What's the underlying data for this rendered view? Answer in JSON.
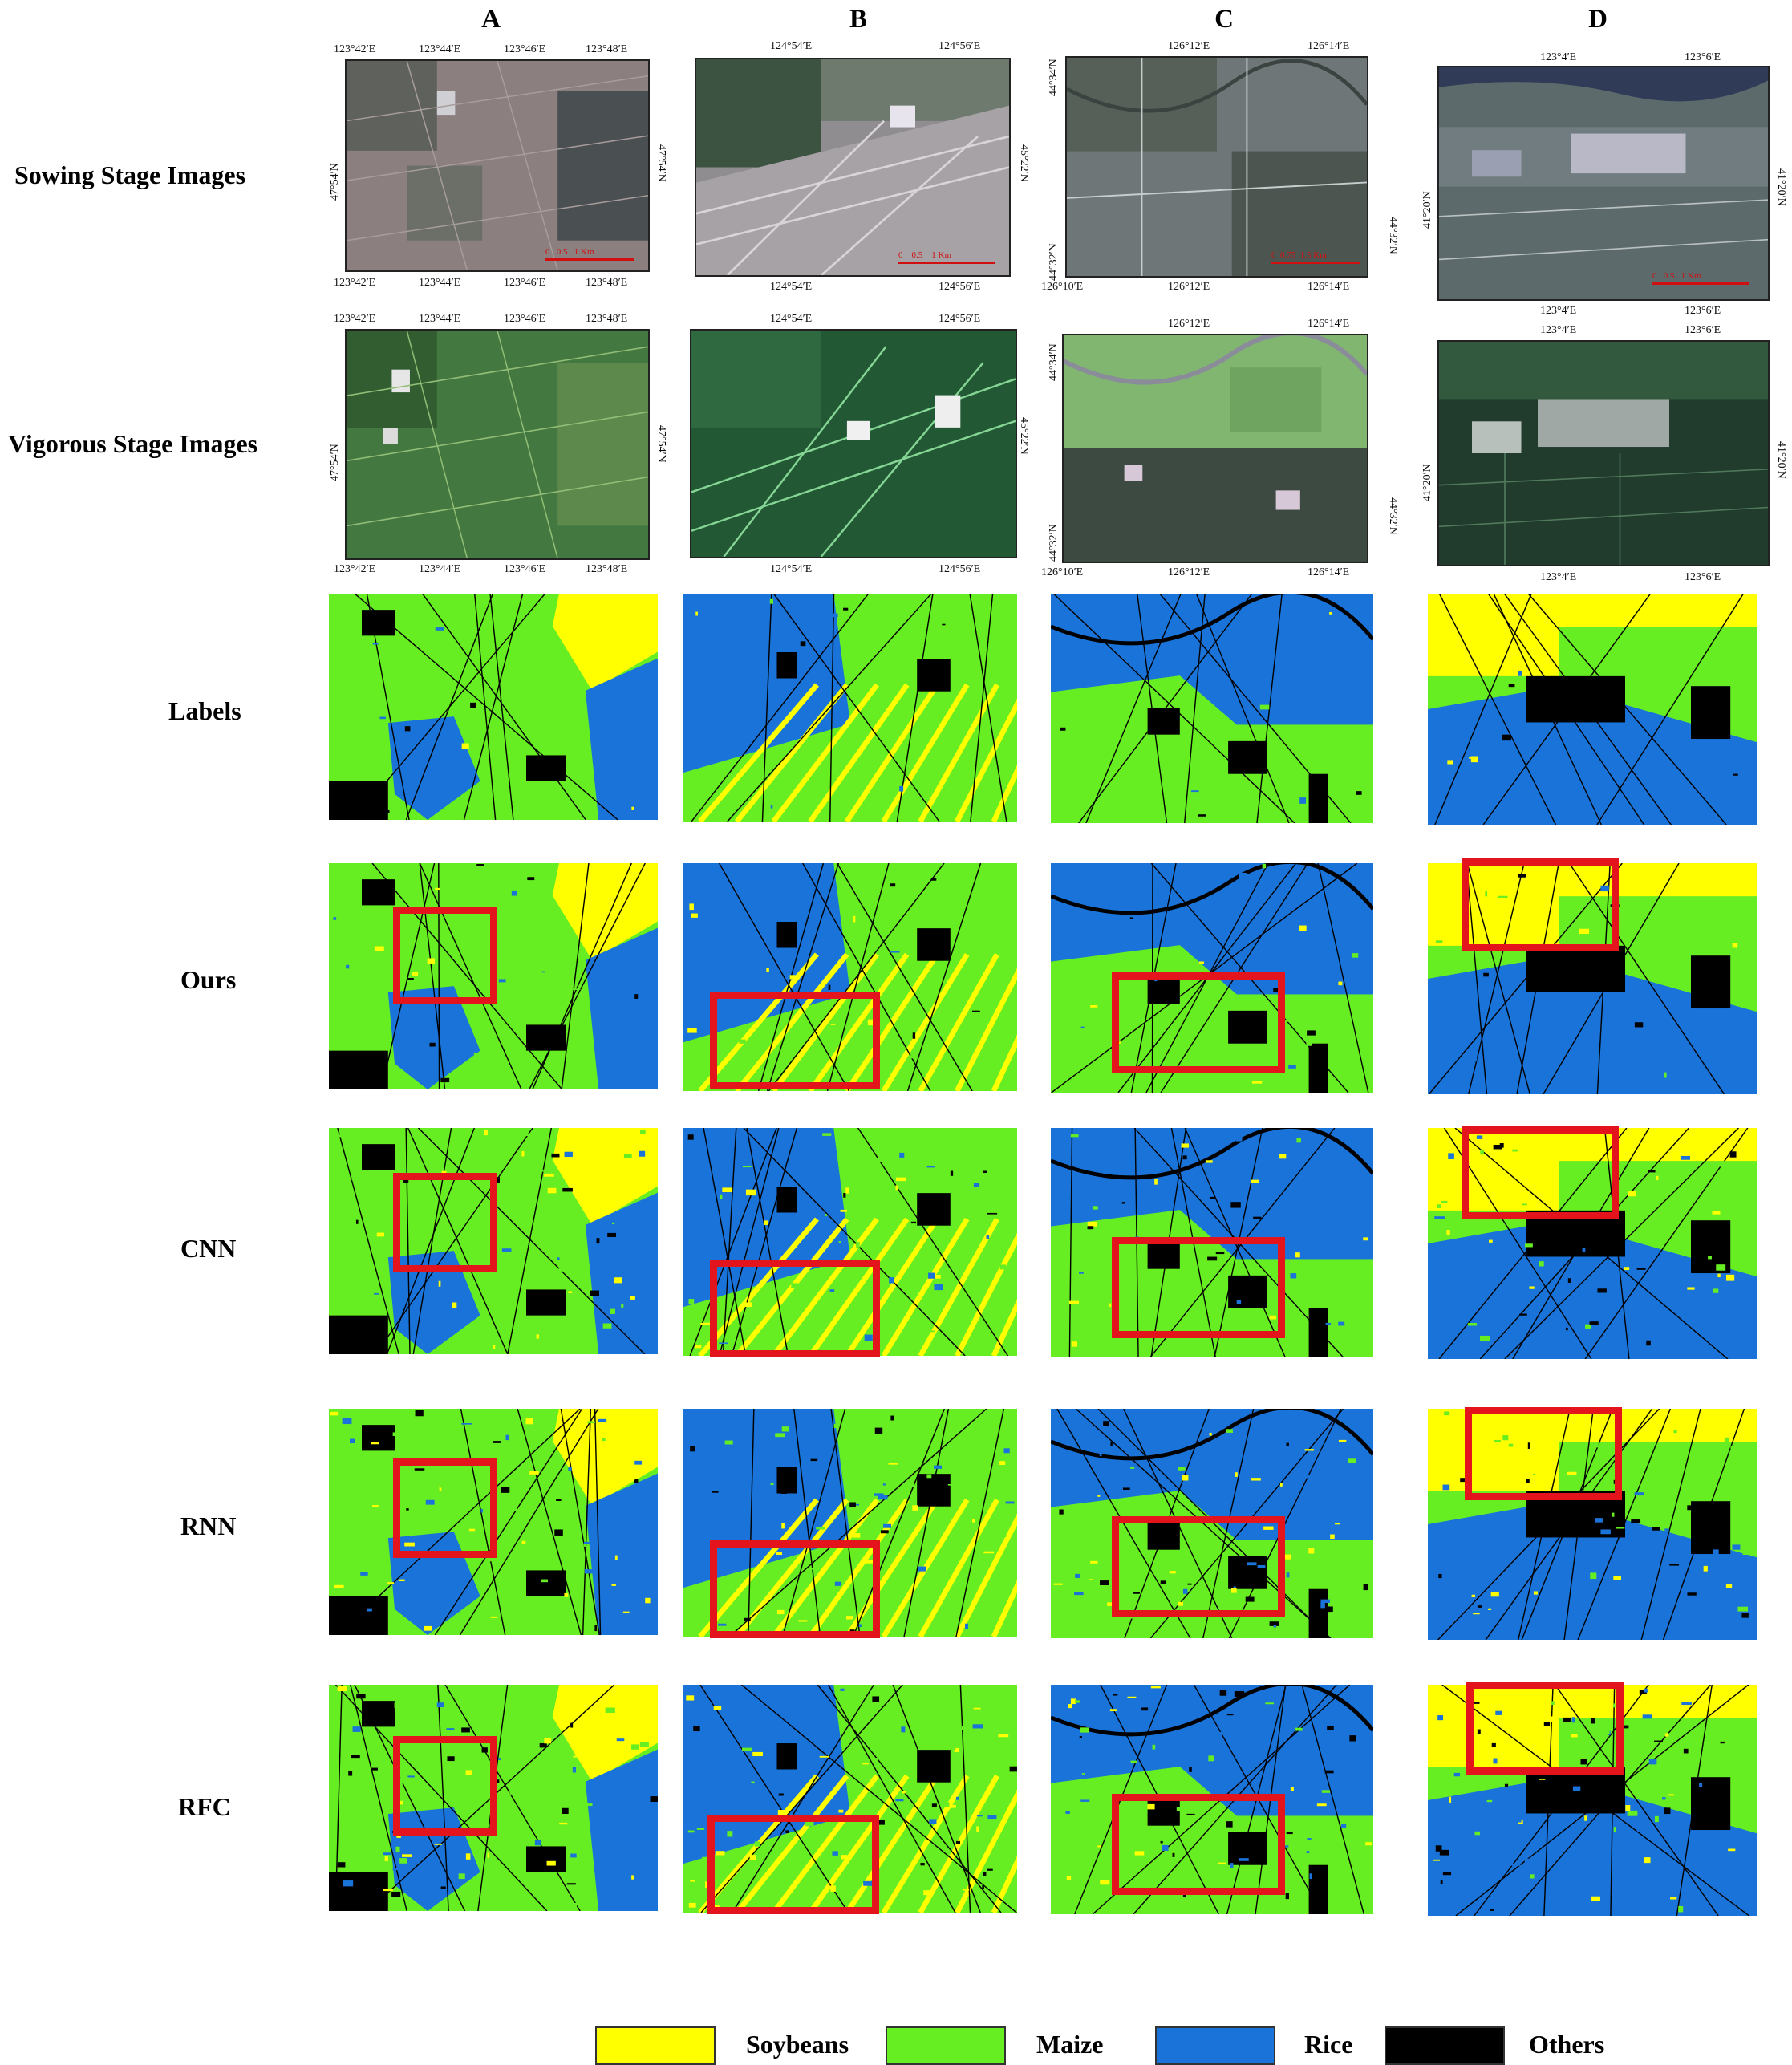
{
  "columns": [
    "A",
    "B",
    "C",
    "D"
  ],
  "rows": [
    "Sowing Stage Images",
    "Vigorous Stage Images",
    "Labels",
    "Ours",
    "CNN",
    "RNN",
    "RFC"
  ],
  "coords": {
    "A": {
      "top": [
        "123°42′E",
        "123°44′E",
        "123°46′E",
        "123°48′E"
      ],
      "bottom": [
        "123°42′E",
        "123°44′E",
        "123°46′E",
        "123°48′E"
      ],
      "left": "47°54′N",
      "right": "47°54′N"
    },
    "B": {
      "top": [
        "124°54′E",
        "124°56′E"
      ],
      "bottom": [
        "124°54′E",
        "124°56′E"
      ],
      "left": "",
      "right": "45°22′N"
    },
    "C": {
      "top": [
        "126°12′E",
        "126°14′E"
      ],
      "bottom": [
        "126°10′E",
        "126°12′E",
        "126°14′E"
      ],
      "left": "44°34′N",
      "left2": "44°32′N",
      "right": "44°32′N"
    },
    "D": {
      "top": [
        "123°4′E",
        "123°6′E"
      ],
      "bottom": [
        "123°4′E",
        "123°6′E"
      ],
      "left": "41°20′N",
      "right": "41°20′N"
    }
  },
  "scalebars": {
    "A": [
      "0",
      "0.5",
      "1 Km"
    ],
    "B": [
      "0",
      "0.5",
      "1 Km"
    ],
    "C": [
      "0",
      "0.75",
      "1.5 Km"
    ],
    "D": [
      "0",
      "0.5",
      "1 Km"
    ]
  },
  "legend": [
    {
      "label": "Soybeans",
      "color": "#ffff00"
    },
    {
      "label": "Maize",
      "color": "#66ee22"
    },
    {
      "label": "Rice",
      "color": "#1a73d9"
    },
    {
      "label": "Others",
      "color": "#000000"
    }
  ],
  "colors": {
    "soy": "#ffff00",
    "maize": "#66ee22",
    "rice": "#1a73d9",
    "other": "#000000",
    "highlight": "#e3141b"
  }
}
